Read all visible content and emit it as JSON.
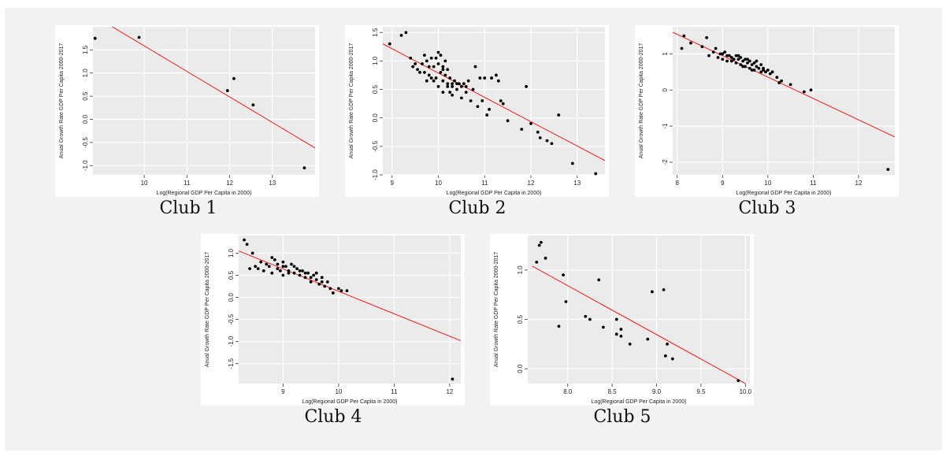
{
  "colors": {
    "panel_bg": "#ebebeb",
    "grid": "#ffffff",
    "point": "#000000",
    "fit_line": "#ff0000",
    "frame_bg": "#f2f2f2"
  },
  "chart_data": [
    {
      "type": "scatter",
      "label": "Club 1",
      "xlabel": "Log(Regional GDP Per Capita in 2000)",
      "ylabel": "Anual Growth Rate GDP Per Capita 2000-2017",
      "xlim": [
        8.8,
        14.0
      ],
      "ylim": [
        -1.2,
        2.0
      ],
      "xticks": [
        "10",
        "11",
        "12",
        "13"
      ],
      "yticks": [
        "-1.0",
        "-0.5",
        "0.0",
        "0.5",
        "1.0",
        "1.5"
      ],
      "points": [
        [
          8.85,
          1.75
        ],
        [
          9.88,
          1.77
        ],
        [
          11.95,
          0.62
        ],
        [
          12.1,
          0.88
        ],
        [
          12.55,
          0.31
        ],
        [
          13.75,
          -1.05
        ]
      ],
      "fit": [
        [
          8.8,
          2.25
        ],
        [
          14.0,
          -0.62
        ]
      ]
    },
    {
      "type": "scatter",
      "label": "Club 2",
      "xlabel": "Log(Regional GDP Per Capita in 2000)",
      "ylabel": "Anual Growth Rate GDP Per Capita 2000-2017",
      "xlim": [
        8.8,
        13.6
      ],
      "ylim": [
        -1.0,
        1.6
      ],
      "xticks": [
        "9",
        "10",
        "11",
        "12",
        "13"
      ],
      "yticks": [
        "-1.0",
        "-0.5",
        "0.0",
        "0.5",
        "1.0",
        "1.5"
      ],
      "points": [
        [
          8.95,
          1.3
        ],
        [
          9.3,
          1.5
        ],
        [
          9.2,
          1.45
        ],
        [
          9.4,
          1.05
        ],
        [
          9.5,
          0.95
        ],
        [
          9.45,
          0.9
        ],
        [
          9.55,
          0.85
        ],
        [
          9.7,
          1.1
        ],
        [
          9.75,
          1.0
        ],
        [
          9.7,
          0.8
        ],
        [
          9.8,
          0.75
        ],
        [
          9.85,
          0.7
        ],
        [
          9.9,
          0.9
        ],
        [
          9.95,
          1.05
        ],
        [
          9.95,
          0.7
        ],
        [
          10.0,
          1.15
        ],
        [
          10.05,
          1.1
        ],
        [
          10.05,
          0.8
        ],
        [
          10.1,
          0.9
        ],
        [
          10.1,
          0.65
        ],
        [
          10.15,
          1.0
        ],
        [
          10.15,
          0.75
        ],
        [
          10.2,
          0.85
        ],
        [
          10.2,
          0.55
        ],
        [
          10.25,
          0.7
        ],
        [
          10.25,
          0.45
        ],
        [
          10.3,
          0.6
        ],
        [
          10.3,
          0.4
        ],
        [
          10.35,
          0.65
        ],
        [
          10.4,
          0.5
        ],
        [
          10.45,
          0.6
        ],
        [
          10.5,
          0.55
        ],
        [
          10.55,
          0.6
        ],
        [
          10.6,
          0.45
        ],
        [
          10.65,
          0.65
        ],
        [
          10.7,
          0.3
        ],
        [
          10.75,
          0.5
        ],
        [
          10.8,
          0.9
        ],
        [
          10.85,
          0.2
        ],
        [
          10.9,
          0.7
        ],
        [
          10.95,
          0.3
        ],
        [
          11.0,
          0.7
        ],
        [
          11.05,
          0.05
        ],
        [
          11.1,
          0.15
        ],
        [
          11.15,
          0.7
        ],
        [
          11.25,
          0.75
        ],
        [
          11.3,
          0.65
        ],
        [
          11.35,
          0.3
        ],
        [
          11.4,
          0.25
        ],
        [
          11.5,
          -0.05
        ],
        [
          11.8,
          -0.2
        ],
        [
          11.9,
          0.55
        ],
        [
          12.0,
          -0.1
        ],
        [
          12.15,
          -0.25
        ],
        [
          12.2,
          -0.35
        ],
        [
          12.35,
          -0.4
        ],
        [
          12.45,
          -0.45
        ],
        [
          12.6,
          0.05
        ],
        [
          12.9,
          -0.8
        ],
        [
          13.4,
          -0.98
        ],
        [
          9.6,
          0.8
        ],
        [
          9.65,
          0.95
        ],
        [
          9.75,
          0.65
        ],
        [
          9.85,
          1.05
        ],
        [
          9.9,
          0.65
        ],
        [
          10.0,
          0.55
        ],
        [
          10.1,
          0.45
        ],
        [
          10.2,
          0.6
        ],
        [
          10.3,
          0.55
        ],
        [
          10.4,
          0.6
        ],
        [
          10.5,
          0.35
        ],
        [
          10.6,
          0.55
        ],
        [
          10.0,
          0.95
        ],
        [
          10.1,
          0.85
        ],
        [
          9.8,
          0.9
        ]
      ],
      "fit": [
        [
          8.8,
          1.3
        ],
        [
          13.6,
          -0.75
        ]
      ]
    },
    {
      "type": "scatter",
      "label": "Club 3",
      "xlabel": "Log(Regional GDP Per Capita in 2000)",
      "ylabel": "Anual Growth Rate GDP Per Capita 2000-2017",
      "xlim": [
        7.9,
        12.8
      ],
      "ylim": [
        -2.35,
        1.75
      ],
      "xticks": [
        "8",
        "9",
        "10",
        "11",
        "12"
      ],
      "yticks": [
        "-2",
        "-1",
        "0",
        "1"
      ],
      "points": [
        [
          8.1,
          1.15
        ],
        [
          8.15,
          1.5
        ],
        [
          8.3,
          1.3
        ],
        [
          8.55,
          1.2
        ],
        [
          8.65,
          1.45
        ],
        [
          8.7,
          0.95
        ],
        [
          8.8,
          1.05
        ],
        [
          8.85,
          1.15
        ],
        [
          8.9,
          0.9
        ],
        [
          8.95,
          1.0
        ],
        [
          9.0,
          0.85
        ],
        [
          9.05,
          1.05
        ],
        [
          9.1,
          0.8
        ],
        [
          9.15,
          0.95
        ],
        [
          9.2,
          0.9
        ],
        [
          9.25,
          0.85
        ],
        [
          9.3,
          0.95
        ],
        [
          9.3,
          0.75
        ],
        [
          9.35,
          0.85
        ],
        [
          9.4,
          0.9
        ],
        [
          9.4,
          0.7
        ],
        [
          9.45,
          0.8
        ],
        [
          9.5,
          0.85
        ],
        [
          9.5,
          0.65
        ],
        [
          9.55,
          0.75
        ],
        [
          9.6,
          0.8
        ],
        [
          9.6,
          0.6
        ],
        [
          9.65,
          0.7
        ],
        [
          9.7,
          0.75
        ],
        [
          9.7,
          0.55
        ],
        [
          9.75,
          0.65
        ],
        [
          9.8,
          0.6
        ],
        [
          9.85,
          0.7
        ],
        [
          9.85,
          0.5
        ],
        [
          9.9,
          0.6
        ],
        [
          9.95,
          0.5
        ],
        [
          10.0,
          0.55
        ],
        [
          10.05,
          0.45
        ],
        [
          10.1,
          0.5
        ],
        [
          10.2,
          0.35
        ],
        [
          10.25,
          0.2
        ],
        [
          10.3,
          0.25
        ],
        [
          10.5,
          0.15
        ],
        [
          10.8,
          -0.05
        ],
        [
          10.95,
          0.0
        ],
        [
          12.65,
          -2.2
        ],
        [
          9.0,
          1.0
        ],
        [
          9.1,
          0.95
        ],
        [
          9.2,
          0.8
        ],
        [
          9.35,
          0.95
        ],
        [
          9.45,
          0.65
        ],
        [
          9.55,
          0.85
        ],
        [
          9.65,
          0.55
        ],
        [
          9.75,
          0.8
        ],
        [
          9.9,
          0.55
        ]
      ],
      "fit": [
        [
          7.9,
          1.6
        ],
        [
          12.8,
          -1.3
        ]
      ]
    },
    {
      "type": "scatter",
      "label": "Club 4",
      "xlabel": "Log(Regional GDP Per Capita in 2000)",
      "ylabel": "Anual Growth Rate GDP Per Capita 2000-2017",
      "xlim": [
        8.2,
        12.2
      ],
      "ylim": [
        -1.95,
        1.4
      ],
      "xticks": [
        "9",
        "10",
        "11",
        "12"
      ],
      "yticks": [
        "-1.5",
        "-1.0",
        "-0.5",
        "0.0",
        "0.5",
        "1.0"
      ],
      "points": [
        [
          8.3,
          1.3
        ],
        [
          8.35,
          1.2
        ],
        [
          8.4,
          0.65
        ],
        [
          8.45,
          1.0
        ],
        [
          8.5,
          0.7
        ],
        [
          8.55,
          0.65
        ],
        [
          8.6,
          0.8
        ],
        [
          8.65,
          0.6
        ],
        [
          8.7,
          0.75
        ],
        [
          8.75,
          0.7
        ],
        [
          8.8,
          0.55
        ],
        [
          8.85,
          0.85
        ],
        [
          8.9,
          0.75
        ],
        [
          8.95,
          0.6
        ],
        [
          9.0,
          0.8
        ],
        [
          9.0,
          0.5
        ],
        [
          9.05,
          0.7
        ],
        [
          9.1,
          0.6
        ],
        [
          9.15,
          0.75
        ],
        [
          9.2,
          0.55
        ],
        [
          9.25,
          0.65
        ],
        [
          9.3,
          0.5
        ],
        [
          9.35,
          0.6
        ],
        [
          9.4,
          0.45
        ],
        [
          9.45,
          0.55
        ],
        [
          9.5,
          0.35
        ],
        [
          9.55,
          0.5
        ],
        [
          9.6,
          0.4
        ],
        [
          9.65,
          0.3
        ],
        [
          9.7,
          0.45
        ],
        [
          9.75,
          0.25
        ],
        [
          9.8,
          0.35
        ],
        [
          9.85,
          0.2
        ],
        [
          9.9,
          0.1
        ],
        [
          10.0,
          0.2
        ],
        [
          10.05,
          0.15
        ],
        [
          10.15,
          0.15
        ],
        [
          12.05,
          -1.85
        ],
        [
          8.8,
          0.9
        ],
        [
          8.9,
          0.65
        ],
        [
          9.0,
          0.7
        ],
        [
          9.1,
          0.55
        ],
        [
          9.2,
          0.7
        ],
        [
          9.3,
          0.6
        ],
        [
          9.4,
          0.55
        ],
        [
          9.5,
          0.45
        ],
        [
          9.6,
          0.55
        ],
        [
          9.7,
          0.35
        ]
      ],
      "fit": [
        [
          8.2,
          1.05
        ],
        [
          12.2,
          -0.98
        ]
      ]
    },
    {
      "type": "scatter",
      "label": "Club 5",
      "xlabel": "Log(Regional GDP Per Capita in 2000)",
      "ylabel": "Anual Growth Rate GDP Per Capita 2000-2017",
      "xlim": [
        7.55,
        10.05
      ],
      "ylim": [
        -0.15,
        1.35
      ],
      "xticks": [
        "8.0",
        "8.5",
        "9.0",
        "9.5",
        "10.0"
      ],
      "yticks": [
        "0.0",
        "0.5",
        "1.0"
      ],
      "points": [
        [
          7.65,
          1.08
        ],
        [
          7.68,
          1.25
        ],
        [
          7.7,
          1.28
        ],
        [
          7.75,
          1.12
        ],
        [
          7.9,
          0.43
        ],
        [
          7.95,
          0.95
        ],
        [
          7.98,
          0.68
        ],
        [
          8.2,
          0.53
        ],
        [
          8.25,
          0.5
        ],
        [
          8.35,
          0.9
        ],
        [
          8.4,
          0.42
        ],
        [
          8.55,
          0.5
        ],
        [
          8.55,
          0.35
        ],
        [
          8.6,
          0.4
        ],
        [
          8.6,
          0.33
        ],
        [
          8.7,
          0.25
        ],
        [
          8.9,
          0.3
        ],
        [
          8.95,
          0.78
        ],
        [
          9.08,
          0.8
        ],
        [
          9.1,
          0.13
        ],
        [
          9.12,
          0.25
        ],
        [
          9.18,
          0.1
        ],
        [
          9.92,
          -0.12
        ]
      ],
      "fit": [
        [
          7.6,
          1.04
        ],
        [
          10.0,
          -0.15
        ]
      ]
    }
  ]
}
